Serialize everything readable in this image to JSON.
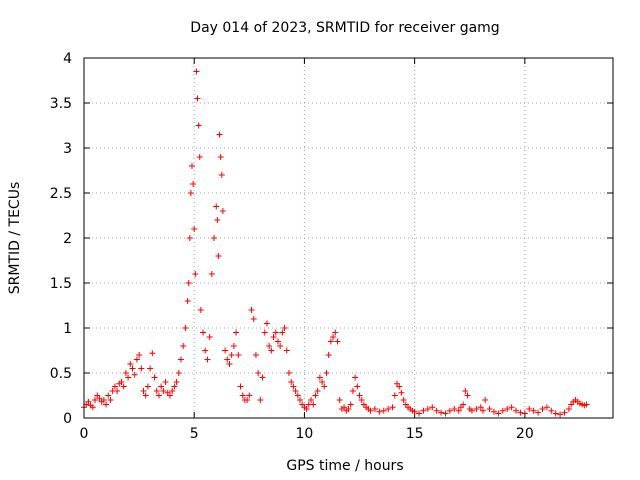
{
  "chart_data": {
    "type": "scatter",
    "title": "Day 014 of 2023, SRMTID for receiver gamg",
    "xlabel": "GPS time / hours",
    "ylabel": "SRMTID / TECUs",
    "xlim": [
      0,
      24
    ],
    "ylim": [
      0,
      4
    ],
    "xticks": [
      0,
      5,
      10,
      15,
      20
    ],
    "xtick_labels": [
      "0",
      "5",
      "10",
      "15",
      "20"
    ],
    "yticks": [
      0,
      0.5,
      1,
      1.5,
      2,
      2.5,
      3,
      3.5,
      4
    ],
    "ytick_labels": [
      "0",
      "0.5",
      "1",
      "1.5",
      "2",
      "2.5",
      "3",
      "3.5",
      "4"
    ],
    "grid": true,
    "legend": "none",
    "marker": "plus",
    "color": "#ff0000",
    "series": [
      {
        "name": "gamg",
        "x": [
          0.0,
          0.1,
          0.2,
          0.3,
          0.4,
          0.5,
          0.6,
          0.7,
          0.8,
          0.9,
          1.0,
          1.1,
          1.2,
          1.3,
          1.4,
          1.5,
          1.6,
          1.7,
          1.8,
          1.9,
          2.0,
          2.1,
          2.2,
          2.3,
          2.4,
          2.5,
          2.6,
          2.7,
          2.8,
          2.9,
          3.0,
          3.1,
          3.2,
          3.3,
          3.4,
          3.5,
          3.6,
          3.7,
          3.8,
          3.9,
          4.0,
          4.1,
          4.2,
          4.3,
          4.4,
          4.5,
          4.6,
          4.7,
          4.75,
          4.8,
          4.85,
          4.9,
          4.95,
          5.0,
          5.05,
          5.1,
          5.15,
          5.2,
          5.25,
          5.3,
          5.4,
          5.5,
          5.6,
          5.7,
          5.8,
          5.9,
          6.0,
          6.05,
          6.1,
          6.15,
          6.2,
          6.25,
          6.3,
          6.4,
          6.5,
          6.6,
          6.7,
          6.8,
          6.9,
          7.0,
          7.1,
          7.2,
          7.3,
          7.4,
          7.5,
          7.6,
          7.7,
          7.8,
          7.9,
          8.0,
          8.1,
          8.2,
          8.3,
          8.4,
          8.5,
          8.6,
          8.7,
          8.8,
          8.9,
          9.0,
          9.1,
          9.2,
          9.3,
          9.4,
          9.5,
          9.6,
          9.7,
          9.8,
          9.9,
          10.0,
          10.1,
          10.2,
          10.3,
          10.4,
          10.5,
          10.6,
          10.7,
          10.8,
          10.9,
          11.0,
          11.1,
          11.2,
          11.3,
          11.4,
          11.5,
          11.6,
          11.7,
          11.8,
          11.9,
          12.0,
          12.1,
          12.2,
          12.3,
          12.4,
          12.5,
          12.6,
          12.7,
          12.8,
          12.9,
          13.0,
          13.2,
          13.4,
          13.6,
          13.8,
          14.0,
          14.1,
          14.2,
          14.3,
          14.4,
          14.5,
          14.6,
          14.7,
          14.8,
          14.9,
          15.0,
          15.2,
          15.4,
          15.6,
          15.8,
          16.0,
          16.2,
          16.4,
          16.6,
          16.8,
          17.0,
          17.1,
          17.2,
          17.3,
          17.4,
          17.5,
          17.6,
          17.8,
          18.0,
          18.1,
          18.2,
          18.4,
          18.6,
          18.8,
          19.0,
          19.2,
          19.4,
          19.6,
          19.8,
          20.0,
          20.2,
          20.4,
          20.6,
          20.8,
          21.0,
          21.2,
          21.4,
          21.6,
          21.8,
          22.0,
          22.1,
          22.2,
          22.3,
          22.4,
          22.5,
          22.6,
          22.7,
          22.8
        ],
        "y": [
          0.12,
          0.15,
          0.18,
          0.14,
          0.12,
          0.2,
          0.25,
          0.22,
          0.18,
          0.2,
          0.15,
          0.25,
          0.2,
          0.3,
          0.35,
          0.3,
          0.38,
          0.4,
          0.35,
          0.5,
          0.45,
          0.6,
          0.55,
          0.48,
          0.65,
          0.7,
          0.55,
          0.3,
          0.25,
          0.35,
          0.55,
          0.72,
          0.45,
          0.3,
          0.25,
          0.35,
          0.3,
          0.4,
          0.28,
          0.25,
          0.3,
          0.35,
          0.4,
          0.5,
          0.65,
          0.8,
          1.0,
          1.3,
          1.5,
          2.0,
          2.5,
          2.8,
          2.6,
          2.1,
          1.6,
          3.85,
          3.55,
          3.25,
          2.9,
          1.2,
          0.95,
          0.75,
          0.65,
          0.9,
          1.6,
          2.0,
          2.35,
          2.2,
          1.8,
          3.15,
          2.9,
          2.7,
          2.3,
          0.75,
          0.65,
          0.6,
          0.7,
          0.8,
          0.95,
          0.7,
          0.35,
          0.25,
          0.2,
          0.2,
          0.25,
          1.2,
          1.1,
          0.7,
          0.5,
          0.2,
          0.45,
          0.95,
          1.05,
          0.8,
          0.75,
          0.9,
          0.95,
          0.85,
          0.8,
          0.95,
          1.0,
          0.75,
          0.5,
          0.4,
          0.35,
          0.3,
          0.25,
          0.2,
          0.15,
          0.12,
          0.1,
          0.15,
          0.2,
          0.15,
          0.25,
          0.3,
          0.45,
          0.4,
          0.35,
          0.5,
          0.7,
          0.85,
          0.9,
          0.95,
          0.85,
          0.2,
          0.1,
          0.12,
          0.08,
          0.1,
          0.15,
          0.3,
          0.45,
          0.35,
          0.25,
          0.2,
          0.15,
          0.12,
          0.1,
          0.08,
          0.1,
          0.07,
          0.08,
          0.1,
          0.12,
          0.25,
          0.38,
          0.35,
          0.28,
          0.2,
          0.15,
          0.12,
          0.1,
          0.08,
          0.07,
          0.05,
          0.08,
          0.1,
          0.12,
          0.08,
          0.06,
          0.05,
          0.08,
          0.1,
          0.08,
          0.12,
          0.15,
          0.3,
          0.25,
          0.1,
          0.08,
          0.1,
          0.12,
          0.08,
          0.2,
          0.1,
          0.07,
          0.05,
          0.08,
          0.1,
          0.12,
          0.08,
          0.06,
          0.05,
          0.1,
          0.08,
          0.06,
          0.1,
          0.12,
          0.08,
          0.05,
          0.04,
          0.06,
          0.1,
          0.15,
          0.18,
          0.2,
          0.18,
          0.16,
          0.15,
          0.14,
          0.15
        ]
      }
    ]
  }
}
